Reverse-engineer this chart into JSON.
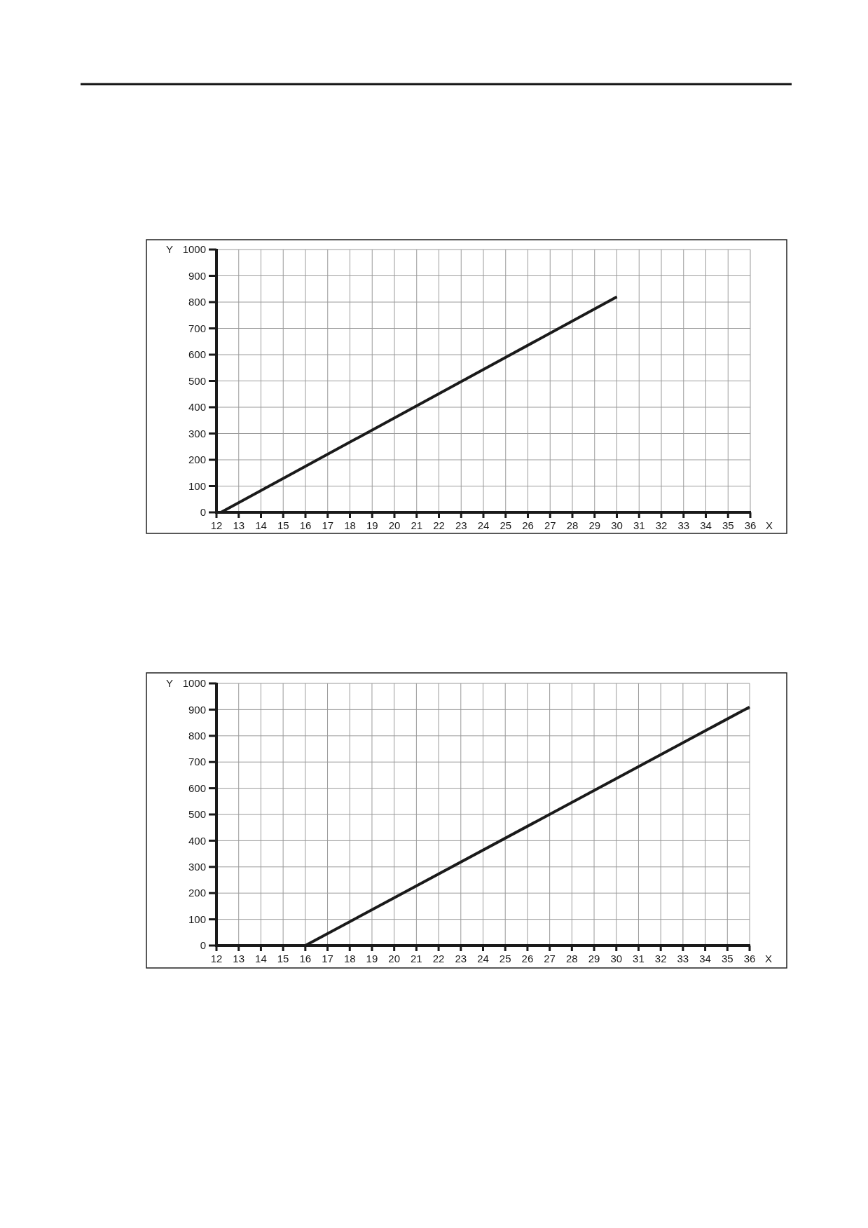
{
  "chart_data": [
    {
      "type": "line",
      "xlabel": "X",
      "ylabel": "Y",
      "x": [
        12.2,
        30
      ],
      "values": [
        0,
        820
      ],
      "color": "#1a1a1a",
      "xlim": [
        12,
        36
      ],
      "ylim": [
        0,
        1000
      ],
      "xticks": [
        12,
        13,
        14,
        15,
        16,
        17,
        18,
        19,
        20,
        21,
        22,
        23,
        24,
        25,
        26,
        27,
        28,
        29,
        30,
        31,
        32,
        33,
        34,
        35,
        36
      ],
      "yticks": [
        0,
        100,
        200,
        300,
        400,
        500,
        600,
        700,
        800,
        900,
        1000
      ],
      "grid": true
    },
    {
      "type": "line",
      "xlabel": "X",
      "ylabel": "Y",
      "x": [
        16,
        36
      ],
      "values": [
        0,
        910
      ],
      "color": "#1a1a1a",
      "xlim": [
        12,
        36
      ],
      "ylim": [
        0,
        1000
      ],
      "xticks": [
        12,
        13,
        14,
        15,
        16,
        17,
        18,
        19,
        20,
        21,
        22,
        23,
        24,
        25,
        26,
        27,
        28,
        29,
        30,
        31,
        32,
        33,
        34,
        35,
        36
      ],
      "yticks": [
        0,
        100,
        200,
        300,
        400,
        500,
        600,
        700,
        800,
        900,
        1000
      ],
      "grid": true
    }
  ]
}
